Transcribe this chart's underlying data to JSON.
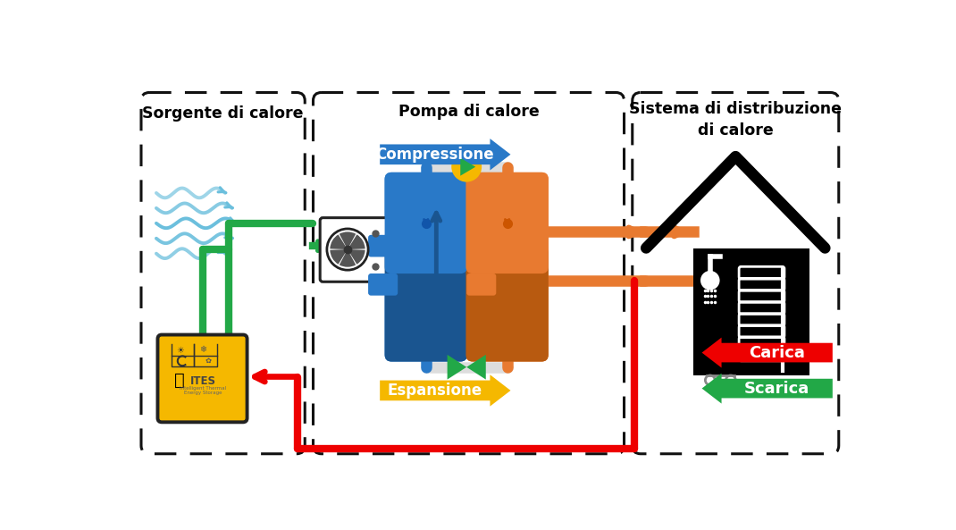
{
  "bg_color": "#ffffff",
  "box1_title": "Sorgente di calore",
  "box2_title": "Pompa di calore",
  "box3_title": "Sistema di distribuzione\ndi calore",
  "label_compressione": "Compressione",
  "label_espansione": "Espansione",
  "label_carica": "Carica",
  "label_scarica": "Scarica",
  "color_blue": "#2979C8",
  "color_blue_dark": "#1a5590",
  "color_orange": "#E87A30",
  "color_orange_dark": "#b85a10",
  "color_green": "#22A847",
  "color_red": "#EE0000",
  "color_yellow": "#F5B800",
  "color_air": "#6BBFDD",
  "color_ites": "#F5B800",
  "color_black": "#111111"
}
